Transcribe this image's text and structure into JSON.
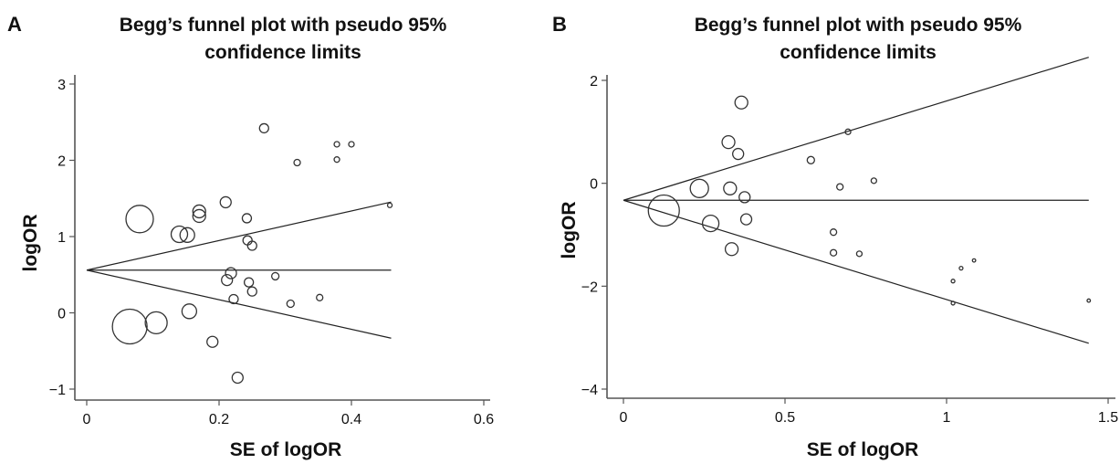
{
  "chart_data": [
    {
      "panel_label": "A",
      "type": "scatter",
      "title_lines": [
        "Begg’s funnel plot with pseudo 95%",
        "confidence limits"
      ],
      "xlabel": "SE of logOR",
      "ylabel": "logOR",
      "xlim": [
        0,
        0.6
      ],
      "ylim": [
        -1.2,
        3.1
      ],
      "xticks": [
        "0",
        "0.2",
        "0.4",
        "0.6"
      ],
      "xtick_values": [
        0,
        0.2,
        0.4,
        0.6
      ],
      "yticks": [
        "−1",
        "0",
        "1",
        "2",
        "3"
      ],
      "ytick_values": [
        -1,
        0,
        1,
        2,
        3
      ],
      "pooled_estimate": 0.56,
      "funnel_slope": 1.94,
      "funnel_max_se": 0.46,
      "points": [
        {
          "x": 0.065,
          "y": -0.18,
          "size": 19
        },
        {
          "x": 0.08,
          "y": 1.23,
          "size": 15
        },
        {
          "x": 0.105,
          "y": -0.13,
          "size": 12
        },
        {
          "x": 0.14,
          "y": 1.03,
          "size": 9
        },
        {
          "x": 0.152,
          "y": 1.02,
          "size": 8
        },
        {
          "x": 0.155,
          "y": 0.02,
          "size": 8
        },
        {
          "x": 0.17,
          "y": 1.33,
          "size": 7
        },
        {
          "x": 0.17,
          "y": 1.27,
          "size": 7
        },
        {
          "x": 0.19,
          "y": -0.38,
          "size": 6
        },
        {
          "x": 0.21,
          "y": 1.45,
          "size": 6
        },
        {
          "x": 0.212,
          "y": 0.43,
          "size": 6
        },
        {
          "x": 0.218,
          "y": 0.52,
          "size": 6
        },
        {
          "x": 0.222,
          "y": 0.18,
          "size": 5
        },
        {
          "x": 0.228,
          "y": -0.85,
          "size": 6
        },
        {
          "x": 0.242,
          "y": 1.24,
          "size": 5
        },
        {
          "x": 0.243,
          "y": 0.95,
          "size": 5
        },
        {
          "x": 0.245,
          "y": 0.4,
          "size": 5
        },
        {
          "x": 0.25,
          "y": 0.88,
          "size": 5
        },
        {
          "x": 0.25,
          "y": 0.28,
          "size": 5
        },
        {
          "x": 0.268,
          "y": 2.42,
          "size": 5
        },
        {
          "x": 0.285,
          "y": 0.48,
          "size": 4
        },
        {
          "x": 0.308,
          "y": 0.12,
          "size": 4
        },
        {
          "x": 0.318,
          "y": 1.97,
          "size": 3.5
        },
        {
          "x": 0.352,
          "y": 0.2,
          "size": 3.5
        },
        {
          "x": 0.378,
          "y": 2.21,
          "size": 3
        },
        {
          "x": 0.378,
          "y": 2.01,
          "size": 3
        },
        {
          "x": 0.4,
          "y": 2.21,
          "size": 3
        },
        {
          "x": 0.458,
          "y": 1.41,
          "size": 2.5
        }
      ]
    },
    {
      "panel_label": "B",
      "type": "scatter",
      "title_lines": [
        "Begg’s funnel plot with pseudo 95%",
        "confidence limits"
      ],
      "xlabel": "SE of logOR",
      "ylabel": "logOR",
      "xlim": [
        0,
        1.5
      ],
      "ylim": [
        -4.2,
        2.7
      ],
      "xticks": [
        "0",
        "0.5",
        "1",
        "1.5"
      ],
      "xtick_values": [
        0,
        0.5,
        1,
        1.5
      ],
      "yticks": [
        "−4",
        "−2",
        "0",
        "2"
      ],
      "ytick_values": [
        -4,
        -2,
        0,
        2
      ],
      "pooled_estimate": -0.33,
      "funnel_slope": 1.93,
      "funnel_max_se": 1.44,
      "points": [
        {
          "x": 0.125,
          "y": -0.53,
          "size": 17
        },
        {
          "x": 0.235,
          "y": -0.1,
          "size": 10
        },
        {
          "x": 0.27,
          "y": -0.78,
          "size": 9
        },
        {
          "x": 0.325,
          "y": 0.8,
          "size": 7
        },
        {
          "x": 0.33,
          "y": -0.1,
          "size": 7
        },
        {
          "x": 0.335,
          "y": -1.28,
          "size": 7
        },
        {
          "x": 0.355,
          "y": 0.57,
          "size": 6
        },
        {
          "x": 0.365,
          "y": 1.57,
          "size": 7
        },
        {
          "x": 0.375,
          "y": -0.27,
          "size": 6
        },
        {
          "x": 0.38,
          "y": -0.7,
          "size": 6
        },
        {
          "x": 0.58,
          "y": 0.45,
          "size": 4
        },
        {
          "x": 0.65,
          "y": -0.95,
          "size": 3.5
        },
        {
          "x": 0.65,
          "y": -1.35,
          "size": 3.5
        },
        {
          "x": 0.67,
          "y": -0.07,
          "size": 3.5
        },
        {
          "x": 0.695,
          "y": 1.0,
          "size": 3
        },
        {
          "x": 0.73,
          "y": -1.37,
          "size": 3
        },
        {
          "x": 0.775,
          "y": 0.05,
          "size": 3
        },
        {
          "x": 1.02,
          "y": -1.9,
          "size": 2
        },
        {
          "x": 1.02,
          "y": -2.33,
          "size": 2
        },
        {
          "x": 1.045,
          "y": -1.65,
          "size": 2
        },
        {
          "x": 1.085,
          "y": -1.5,
          "size": 1.8
        },
        {
          "x": 1.44,
          "y": -2.28,
          "size": 1.8
        }
      ]
    }
  ]
}
